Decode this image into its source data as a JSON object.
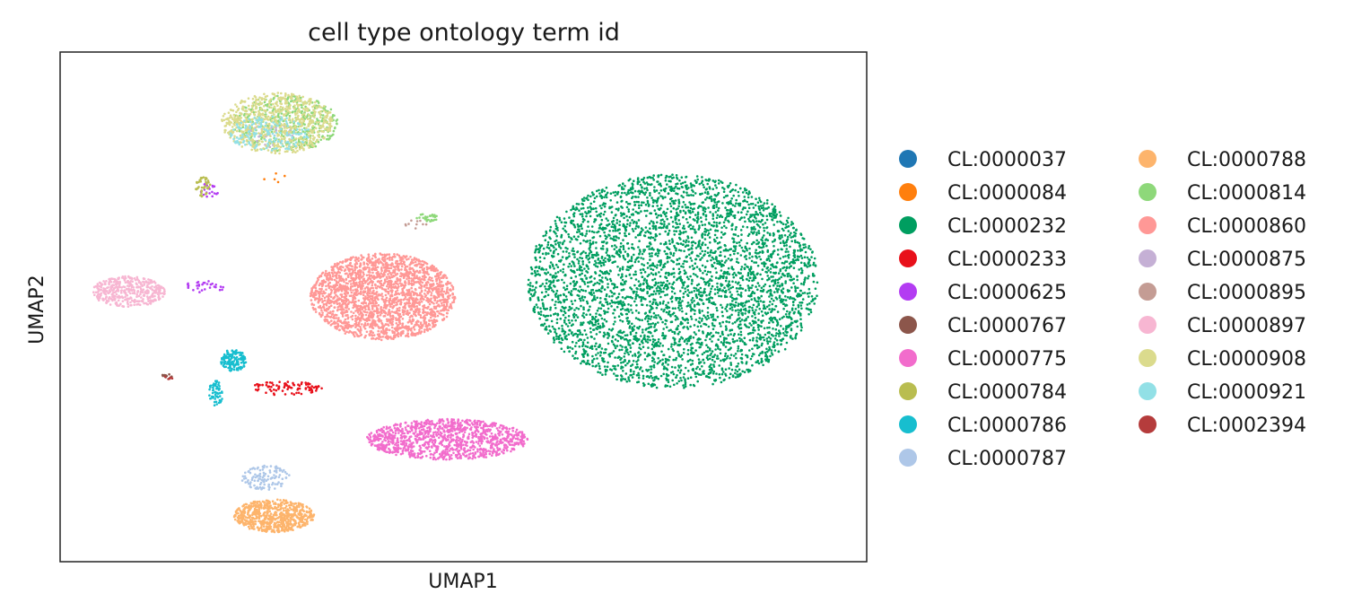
{
  "chart_data": {
    "type": "scatter",
    "title": "cell type ontology term id",
    "xlabel": "UMAP1",
    "ylabel": "UMAP2",
    "xlim": [
      0,
      100
    ],
    "ylim": [
      0,
      100
    ],
    "grid": false,
    "legend_placement": "right",
    "series": [
      {
        "name": "CL:0000037",
        "color": "#1f77b4",
        "clusters": []
      },
      {
        "name": "CL:0000084",
        "color": "#ff7f0e",
        "clusters": [
          {
            "x": 28,
            "y": 78,
            "rx": 4,
            "ry": 4,
            "n": 6
          }
        ]
      },
      {
        "name": "CL:0000232",
        "color": "#009e60",
        "clusters": [
          {
            "x": 76,
            "y": 55,
            "rx": 18,
            "ry": 21,
            "n": 4200
          }
        ]
      },
      {
        "name": "CL:0000233",
        "color": "#e8101a",
        "clusters": [
          {
            "x": 28,
            "y": 34,
            "rx": 4.5,
            "ry": 1.4,
            "n": 90
          }
        ]
      },
      {
        "name": "CL:0000625",
        "color": "#b33cf2",
        "clusters": [
          {
            "x": 18,
            "y": 54,
            "rx": 2.5,
            "ry": 1.2,
            "n": 30
          },
          {
            "x": 18.5,
            "y": 73,
            "rx": 1.2,
            "ry": 1.5,
            "n": 20
          }
        ]
      },
      {
        "name": "CL:0000767",
        "color": "#8c564b",
        "clusters": [
          {
            "x": 13.3,
            "y": 36.4,
            "rx": 0.8,
            "ry": 0.6,
            "n": 10
          }
        ]
      },
      {
        "name": "CL:0000775",
        "color": "#f26ccc",
        "clusters": [
          {
            "x": 48,
            "y": 24,
            "rx": 10,
            "ry": 4,
            "n": 1100
          }
        ]
      },
      {
        "name": "CL:0000784",
        "color": "#b9bd50",
        "clusters": [
          {
            "x": 17.8,
            "y": 73.5,
            "rx": 1,
            "ry": 2,
            "n": 40
          }
        ]
      },
      {
        "name": "CL:0000786",
        "color": "#17becf",
        "clusters": [
          {
            "x": 21.5,
            "y": 39.5,
            "rx": 1.6,
            "ry": 2.2,
            "n": 140
          },
          {
            "x": 19.3,
            "y": 33,
            "rx": 0.9,
            "ry": 2.5,
            "n": 60
          }
        ]
      },
      {
        "name": "CL:0000787",
        "color": "#aec7e8",
        "clusters": [
          {
            "x": 25.5,
            "y": 16.5,
            "rx": 3,
            "ry": 2.5,
            "n": 120
          }
        ]
      },
      {
        "name": "CL:0000788",
        "color": "#fdb46c",
        "clusters": [
          {
            "x": 26.5,
            "y": 9,
            "rx": 5,
            "ry": 3.2,
            "n": 700
          }
        ]
      },
      {
        "name": "CL:0000814",
        "color": "#8ed87a",
        "clusters": [
          {
            "x": 28,
            "y": 86,
            "rx": 6.5,
            "ry": 5.5,
            "n": 420
          },
          {
            "x": 45.5,
            "y": 67.5,
            "rx": 1.3,
            "ry": 0.8,
            "n": 30
          }
        ]
      },
      {
        "name": "CL:0000860",
        "color": "#ff9896",
        "clusters": [
          {
            "x": 40,
            "y": 52,
            "rx": 9,
            "ry": 8.5,
            "n": 2200
          }
        ]
      },
      {
        "name": "CL:0000875",
        "color": "#c5b0d5",
        "clusters": [
          {
            "x": 26,
            "y": 84,
            "rx": 3,
            "ry": 3,
            "n": 40
          }
        ]
      },
      {
        "name": "CL:0000895",
        "color": "#c49c94",
        "clusters": [
          {
            "x": 44,
            "y": 66,
            "rx": 1.5,
            "ry": 1,
            "n": 10
          }
        ]
      },
      {
        "name": "CL:0000897",
        "color": "#f7b6d2",
        "clusters": [
          {
            "x": 8.5,
            "y": 53,
            "rx": 4.5,
            "ry": 3,
            "n": 420
          }
        ]
      },
      {
        "name": "CL:0000908",
        "color": "#dbdb8d",
        "clusters": [
          {
            "x": 27,
            "y": 86,
            "rx": 7,
            "ry": 6,
            "n": 700
          }
        ]
      },
      {
        "name": "CL:0000921",
        "color": "#92e0e6",
        "clusters": [
          {
            "x": 26,
            "y": 84,
            "rx": 5,
            "ry": 3.5,
            "n": 160
          }
        ]
      },
      {
        "name": "CL:0002394",
        "color": "#b53c3c",
        "clusters": [
          {
            "x": 13.5,
            "y": 36.2,
            "rx": 0.5,
            "ry": 0.4,
            "n": 6
          }
        ]
      }
    ]
  }
}
